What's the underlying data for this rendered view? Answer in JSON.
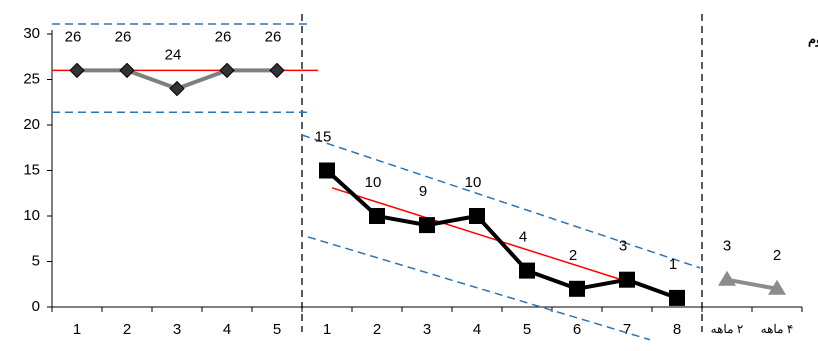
{
  "chart_data": {
    "type": "line",
    "title": "مراجع دوم",
    "categories": [
      "1",
      "2",
      "3",
      "4",
      "5",
      "1",
      "2",
      "3",
      "4",
      "5",
      "6",
      "7",
      "8",
      "۲ ماهه",
      "۴ ماهه"
    ],
    "series": [
      {
        "color": "#7f7f7f",
        "marker": "diamond",
        "marker_color": "#333333",
        "values": [
          26,
          26,
          24,
          26,
          26,
          null,
          null,
          null,
          null,
          null,
          null,
          null,
          null,
          null,
          null
        ]
      },
      {
        "color": "#000000",
        "marker": "square",
        "marker_color": "#000000",
        "values": [
          null,
          null,
          null,
          null,
          null,
          15,
          10,
          9,
          10,
          4,
          2,
          3,
          1,
          null,
          null
        ]
      },
      {
        "color": "#8c8c8c",
        "marker": "triangle",
        "marker_color": "#8c8c8c",
        "values": [
          null,
          null,
          null,
          null,
          null,
          null,
          null,
          null,
          null,
          null,
          null,
          null,
          null,
          3,
          2
        ]
      }
    ],
    "phase_breaks": [
      5,
      13
    ],
    "trend_lines": [
      {
        "color": "#ff0000",
        "dash": false,
        "x": [
          -0.5,
          4.82
        ],
        "y": [
          26,
          26
        ]
      },
      {
        "color": "#2e75b6",
        "dash": true,
        "x": [
          -0.5,
          4.66
        ],
        "y": [
          31.1,
          31.1
        ]
      },
      {
        "color": "#2e75b6",
        "dash": true,
        "x": [
          -0.5,
          4.66
        ],
        "y": [
          21.4,
          21.4
        ]
      },
      {
        "color": "#ff0000",
        "dash": false,
        "x": [
          5.1,
          11.98
        ],
        "y": [
          13.1,
          1.1
        ]
      },
      {
        "color": "#2e75b6",
        "dash": true,
        "x": [
          4.5,
          12.46
        ],
        "y": [
          18.9,
          4.3
        ]
      },
      {
        "color": "#2e75b6",
        "dash": true,
        "x": [
          4.62,
          11.46
        ],
        "y": [
          7.7,
          -3.6
        ]
      }
    ],
    "ylim": [
      0,
      30
    ],
    "yticks": [
      0,
      5,
      10,
      15,
      20,
      25,
      30
    ]
  }
}
